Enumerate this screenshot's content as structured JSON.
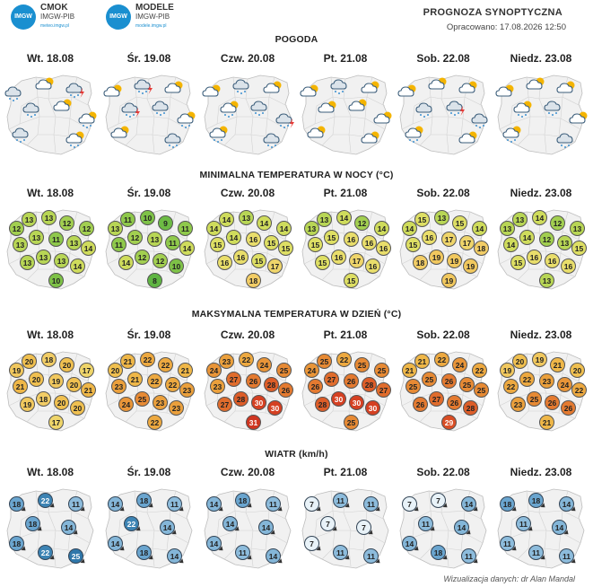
{
  "header": {
    "logo1": {
      "badge": "IMGW",
      "name": "CMOK",
      "org": "IMGW-PIB",
      "url": "meteo.imgw.pl"
    },
    "logo2": {
      "badge": "IMGW",
      "name": "MODELE",
      "org": "IMGW-PIB",
      "url": "modele.imgw.pl"
    },
    "title": "PROGNOZA SYNOPTYCZNA",
    "updated": "Opracowano: 17.08.2026 12:50"
  },
  "days": [
    "Wt. 18.08",
    "Śr. 19.08",
    "Czw. 20.08",
    "Pt. 21.08",
    "Sob. 22.08",
    "Niedz. 23.08"
  ],
  "sections": {
    "weather": "POGODA",
    "tmin": "MINIMALNA TEMPERATURA W NOCY (°C)",
    "tmax": "MAKSYMALNA TEMPERATURA W DZIEŃ (°C)",
    "wind": "WIATR (km/h)"
  },
  "colors": {
    "t8": "#5fb542",
    "t9": "#6dbb44",
    "t10": "#7ec247",
    "t11": "#8fc94b",
    "t12": "#a2cf50",
    "t13": "#b8d655",
    "t14": "#cfdc5c",
    "t15": "#dedf64",
    "t16": "#e9de6b",
    "t17": "#efd56a",
    "t18": "#f2cd66",
    "t19": "#f1c85e",
    "t20": "#f0c050",
    "t21": "#efb748",
    "t22": "#eda940",
    "t23": "#eba03c",
    "t24": "#e99538",
    "t25": "#e78a34",
    "t26": "#e47a30",
    "t27": "#e06c2c",
    "t28": "#dd5d28",
    "t29": "#d94e25",
    "t30": "#d54022",
    "t31": "#cf3520",
    "w7": "#e8f2f8",
    "w11": "#8dbcdc",
    "w14": "#84b6d8",
    "w18": "#6aa5cf",
    "w22": "#3d84b4",
    "w25": "#2f77aa"
  },
  "weather_icons": [
    [
      "cloud-rain-icon",
      "cloud-sun-icon",
      "cloud-storm-icon",
      "cloud-rain-icon",
      "cloud-sun-icon",
      "cloud-sun-rain-icon",
      "cloud-rain-icon",
      "cloud-sun-rain-icon"
    ],
    [
      "cloud-sun-icon",
      "cloud-storm-icon",
      "cloud-sun-icon",
      "cloud-storm-icon",
      "cloud-rain-icon",
      "cloud-sun-rain-icon",
      "cloud-sun-icon",
      "cloud-rain-icon"
    ],
    [
      "cloud-sun-icon",
      "cloud-rain-icon",
      "cloud-sun-icon",
      "cloud-sun-rain-icon",
      "cloud-rain-icon",
      "cloud-storm-icon",
      "cloud-sun-rain-icon",
      "cloud-rain-icon"
    ],
    [
      "cloud-sun-icon",
      "cloud-rain-icon",
      "cloud-sun-icon",
      "cloud-sun-icon",
      "cloud-sun-icon",
      "cloud-sun-icon",
      "cloud-sun-icon",
      "cloud-sun-icon"
    ],
    [
      "cloud-sun-icon",
      "cloud-sun-icon",
      "cloud-sun-icon",
      "cloud-rain-icon",
      "cloud-storm-icon",
      "cloud-rain-icon",
      "cloud-sun-rain-icon",
      "cloud-sun-icon"
    ],
    [
      "cloud-sun-icon",
      "cloud-sun-icon",
      "cloud-sun-icon",
      "cloud-sun-rain-icon",
      "cloud-rain-icon",
      "cloud-sun-icon",
      "cloud-sun-rain-icon",
      "cloud-rain-icon"
    ]
  ],
  "tmin": [
    [
      12,
      13,
      13,
      12,
      12,
      13,
      13,
      11,
      13,
      14,
      13,
      13,
      13,
      14,
      10
    ],
    [
      13,
      11,
      10,
      9,
      11,
      11,
      12,
      13,
      11,
      14,
      14,
      12,
      12,
      10,
      8
    ],
    [
      14,
      14,
      13,
      14,
      14,
      15,
      14,
      16,
      15,
      15,
      16,
      16,
      15,
      17,
      18
    ],
    [
      13,
      13,
      14,
      12,
      14,
      15,
      15,
      16,
      16,
      16,
      15,
      16,
      17,
      16,
      15
    ],
    [
      14,
      15,
      13,
      15,
      14,
      15,
      16,
      17,
      17,
      18,
      18,
      19,
      19,
      19,
      19
    ],
    [
      13,
      13,
      14,
      12,
      13,
      14,
      14,
      12,
      13,
      15,
      15,
      16,
      16,
      16,
      13
    ]
  ],
  "tmax": [
    [
      19,
      20,
      18,
      20,
      17,
      21,
      20,
      19,
      20,
      21,
      19,
      18,
      20,
      20,
      17
    ],
    [
      20,
      21,
      22,
      22,
      21,
      23,
      21,
      22,
      22,
      23,
      24,
      25,
      23,
      23,
      22
    ],
    [
      24,
      23,
      22,
      24,
      25,
      23,
      27,
      26,
      28,
      26,
      27,
      28,
      30,
      30,
      31
    ],
    [
      24,
      25,
      22,
      25,
      25,
      26,
      27,
      26,
      28,
      27,
      28,
      30,
      30,
      30,
      25
    ],
    [
      21,
      21,
      22,
      24,
      22,
      25,
      25,
      26,
      25,
      25,
      26,
      27,
      26,
      28,
      29
    ],
    [
      19,
      20,
      19,
      21,
      20,
      22,
      22,
      23,
      24,
      22,
      23,
      25,
      26,
      26,
      21
    ]
  ],
  "wind": [
    [
      18,
      22,
      11,
      18,
      14,
      18,
      22,
      25
    ],
    [
      14,
      18,
      11,
      22,
      14,
      14,
      18,
      14
    ],
    [
      14,
      18,
      11,
      14,
      14,
      14,
      11,
      14
    ],
    [
      7,
      11,
      11,
      7,
      7,
      7,
      11,
      11
    ],
    [
      7,
      7,
      14,
      11,
      14,
      14,
      18,
      11
    ],
    [
      18,
      18,
      14,
      11,
      14,
      11,
      11,
      11
    ]
  ],
  "footer": "Wizualizacja danych: dr Alan Mandal"
}
